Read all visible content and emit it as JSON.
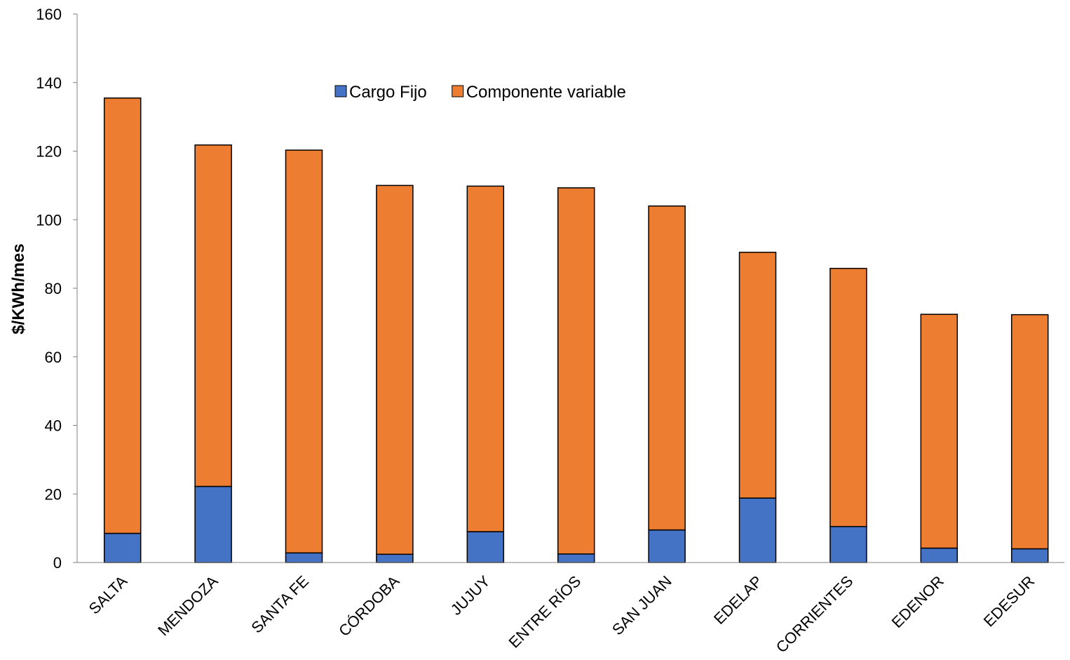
{
  "chart_data": {
    "type": "bar",
    "stacked": true,
    "categories": [
      "SALTA",
      "MENDOZA",
      "SANTA FE",
      "CÓRDOBA",
      "JUJUY",
      "ENTRE RÍOS",
      "SAN JUAN",
      "EDELAP",
      "CORRIENTES",
      "EDENOR",
      "EDESUR"
    ],
    "series": [
      {
        "name": "Cargo Fijo",
        "color": "#4472C4",
        "values": [
          8.5,
          22.2,
          2.8,
          2.4,
          9.0,
          2.5,
          9.5,
          18.8,
          10.5,
          4.2,
          4.0
        ]
      },
      {
        "name": "Componente variable",
        "color": "#ED7D31",
        "values": [
          127.0,
          99.6,
          117.5,
          107.6,
          100.8,
          106.8,
          94.5,
          71.7,
          75.3,
          68.2,
          68.3
        ]
      }
    ],
    "title": "",
    "xlabel": "",
    "ylabel": "$/KWh/mes",
    "ylim": [
      0,
      160
    ],
    "yticks": [
      0,
      20,
      40,
      60,
      80,
      100,
      120,
      140,
      160
    ],
    "grid": false,
    "legend_position": "top-center"
  }
}
